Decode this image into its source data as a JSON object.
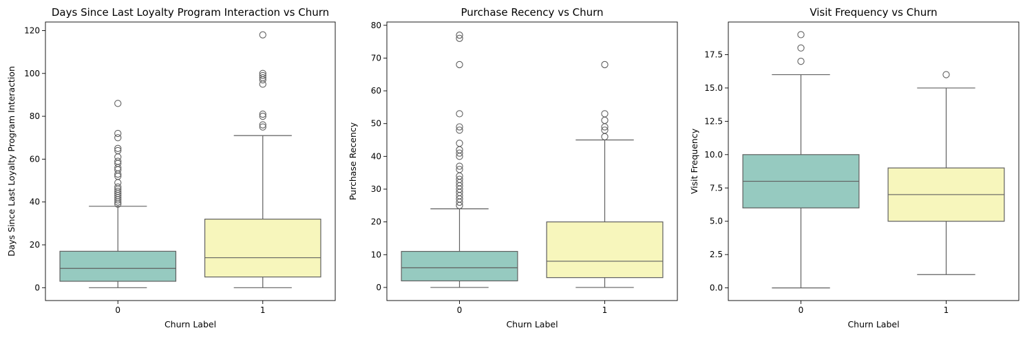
{
  "chart_data": [
    {
      "type": "box",
      "title": "Days Since Last Loyalty Program Interaction vs Churn",
      "xlabel": "Churn Label",
      "ylabel": "Days Since Last Loyalty Program Interaction",
      "categories": [
        "0",
        "1"
      ],
      "ylim": [
        -6,
        124
      ],
      "yticks": [
        0,
        20,
        40,
        60,
        80,
        100,
        120
      ],
      "ytick_labels": [
        "0",
        "20",
        "40",
        "60",
        "80",
        "100",
        "120"
      ],
      "boxes": [
        {
          "category": "0",
          "color": "#96cac0",
          "whislo": 0,
          "q1": 3,
          "median": 9,
          "q3": 17,
          "whishi": 38,
          "fliers": [
            39,
            40,
            41,
            42,
            43,
            44,
            45,
            46,
            47,
            49,
            52,
            53,
            55,
            56,
            58,
            59,
            61,
            64,
            65,
            70,
            72,
            86
          ]
        },
        {
          "category": "1",
          "color": "#f7f6bc",
          "whislo": 0,
          "q1": 5,
          "median": 14,
          "q3": 32,
          "whishi": 71,
          "fliers": [
            75,
            76,
            80,
            81,
            95,
            97,
            98,
            99,
            100,
            118
          ]
        }
      ]
    },
    {
      "type": "box",
      "title": "Purchase Recency vs Churn",
      "xlabel": "Churn Label",
      "ylabel": "Purchase Recency",
      "categories": [
        "0",
        "1"
      ],
      "ylim": [
        -4,
        81
      ],
      "yticks": [
        0,
        10,
        20,
        30,
        40,
        50,
        60,
        70,
        80
      ],
      "ytick_labels": [
        "0",
        "10",
        "20",
        "30",
        "40",
        "50",
        "60",
        "70",
        "80"
      ],
      "boxes": [
        {
          "category": "0",
          "color": "#96cac0",
          "whislo": 0,
          "q1": 2,
          "median": 6,
          "q3": 11,
          "whishi": 24,
          "fliers": [
            25,
            26,
            27,
            28,
            29,
            30,
            31,
            32,
            33,
            34,
            36,
            37,
            40,
            41,
            42,
            44,
            48,
            49,
            53,
            68,
            76,
            77
          ]
        },
        {
          "category": "1",
          "color": "#f7f6bc",
          "whislo": 0,
          "q1": 3,
          "median": 8,
          "q3": 20,
          "whishi": 45,
          "fliers": [
            46,
            48,
            49,
            51,
            53,
            68
          ]
        }
      ]
    },
    {
      "type": "box",
      "title": "Visit Frequency vs Churn",
      "xlabel": "Churn Label",
      "ylabel": "Visit Frequency",
      "categories": [
        "0",
        "1"
      ],
      "ylim": [
        -0.95,
        19.95
      ],
      "yticks": [
        0,
        2.5,
        5,
        7.5,
        10,
        12.5,
        15,
        17.5
      ],
      "ytick_labels": [
        "0.0",
        "2.5",
        "5.0",
        "7.5",
        "10.0",
        "12.5",
        "15.0",
        "17.5"
      ],
      "boxes": [
        {
          "category": "0",
          "color": "#96cac0",
          "whislo": 0,
          "q1": 6,
          "median": 8,
          "q3": 10,
          "whishi": 16,
          "fliers": [
            17,
            18,
            19
          ]
        },
        {
          "category": "1",
          "color": "#f7f6bc",
          "whislo": 1,
          "q1": 5,
          "median": 7,
          "q3": 9,
          "whishi": 15,
          "fliers": [
            16
          ]
        }
      ]
    }
  ]
}
